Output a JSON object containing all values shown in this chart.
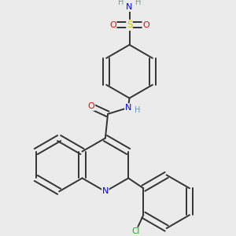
{
  "background_color": "#ebebeb",
  "atom_colors": {
    "C": "#000000",
    "N": "#0000ff",
    "O": "#ff0000",
    "S": "#cccc00",
    "Cl": "#00bb00",
    "H": "#6699aa"
  },
  "figure_size": [
    3.0,
    3.0
  ],
  "dpi": 100
}
